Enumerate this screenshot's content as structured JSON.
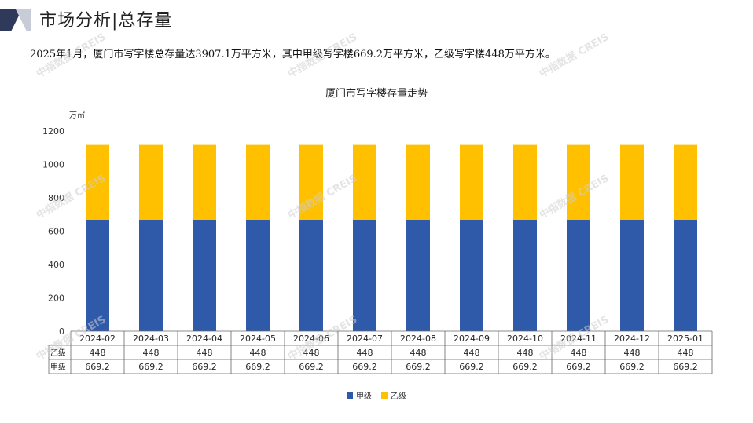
{
  "header": {
    "title": "市场分析|总存量"
  },
  "summary": "2025年1月，厦门市写字楼总存量达3907.1万平方米，其中甲级写字楼669.2万平方米，乙级写字楼448万平方米。",
  "watermark": "中指数据 CREIS",
  "colors": {
    "grade_a": "#2f5aaa",
    "grade_b": "#ffc000",
    "logo_dark": "#2f3a5a",
    "logo_light": "#c8ccd6"
  },
  "chart_data": {
    "type": "bar",
    "stacked": true,
    "title": "厦门市写字楼存量走势",
    "ylabel": "万㎡",
    "ylim": [
      0,
      1200
    ],
    "yticks": [
      0,
      200,
      400,
      600,
      800,
      1000,
      1200
    ],
    "categories": [
      "2024-02",
      "2024-03",
      "2024-04",
      "2024-05",
      "2024-06",
      "2024-07",
      "2024-08",
      "2024-09",
      "2024-10",
      "2024-11",
      "2024-12",
      "2025-01"
    ],
    "series": [
      {
        "name": "甲级",
        "color": "#2f5aaa",
        "values": [
          669.2,
          669.2,
          669.2,
          669.2,
          669.2,
          669.2,
          669.2,
          669.2,
          669.2,
          669.2,
          669.2,
          669.2
        ],
        "labels": [
          "669.2",
          "669.2",
          "669.2",
          "669.2",
          "669.2",
          "669.2",
          "669.2",
          "669.2",
          "669.2",
          "669.2",
          "669.2",
          "669.2"
        ]
      },
      {
        "name": "乙级",
        "color": "#ffc000",
        "values": [
          448,
          448,
          448,
          448,
          448,
          448,
          448,
          448,
          448,
          448,
          448,
          448
        ],
        "labels": [
          "448",
          "448",
          "448",
          "448",
          "448",
          "448",
          "448",
          "448",
          "448",
          "448",
          "448",
          "448"
        ]
      }
    ],
    "table_rows": [
      "乙级",
      "甲级"
    ],
    "legend": [
      "甲级",
      "乙级"
    ],
    "legend_position": "bottom"
  }
}
